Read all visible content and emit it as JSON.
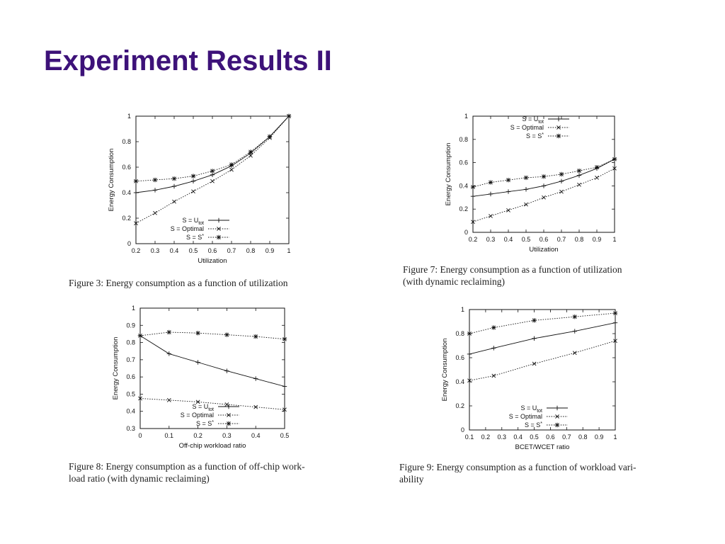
{
  "slide": {
    "title": "Experiment Results II"
  },
  "figures": [
    {
      "caption_lines": [
        "Figure 3: Energy consumption as a function of utilization"
      ]
    },
    {
      "caption_lines": [
        "Figure 7:  Energy consumption as a function of utilization",
        "(with dynamic reclaiming)"
      ]
    },
    {
      "caption_lines": [
        "Figure 8: Energy consumption as a function of off-chip work-",
        "load ratio (with dynamic reclaiming)"
      ]
    },
    {
      "caption_lines": [
        "Figure 9: Energy consumption as a function of workload vari-",
        "ability"
      ]
    }
  ],
  "chart_data": [
    {
      "type": "line",
      "xlabel": "Utilization",
      "ylabel": "Energy Consumption",
      "xlim": [
        0.2,
        1
      ],
      "ylim": [
        0,
        1
      ],
      "xticks": [
        "0.2",
        "0.3",
        "0.4",
        "0.5",
        "0.6",
        "0.7",
        "0.8",
        "0.9",
        "1"
      ],
      "yticks": [
        "0",
        "0.2",
        "0.4",
        "0.6",
        "0.8",
        "1"
      ],
      "legend_position": "bottom-right",
      "x": [
        0.2,
        0.3,
        0.4,
        0.5,
        0.6,
        0.7,
        0.8,
        0.9,
        1
      ],
      "series": [
        {
          "name": "S = U",
          "name_sub": "tot",
          "marker": "plus",
          "dash": "solid",
          "values": [
            0.4,
            0.42,
            0.45,
            0.49,
            0.54,
            0.61,
            0.71,
            0.84,
            1.0
          ]
        },
        {
          "name": "S = Optimal",
          "marker": "x",
          "dash": "dotted",
          "values": [
            0.16,
            0.24,
            0.33,
            0.41,
            0.49,
            0.58,
            0.69,
            0.83,
            1.0
          ]
        },
        {
          "name": "S = S",
          "name_sup": "*",
          "marker": "star",
          "dash": "dotted",
          "values": [
            0.49,
            0.5,
            0.51,
            0.53,
            0.57,
            0.62,
            0.72,
            0.84,
            1.0
          ]
        }
      ]
    },
    {
      "type": "line",
      "xlabel": "Utilization",
      "ylabel": "Energy Consumption",
      "xlim": [
        0.2,
        1
      ],
      "ylim": [
        0,
        1
      ],
      "xticks": [
        "0.2",
        "0.3",
        "0.4",
        "0.5",
        "0.6",
        "0.7",
        "0.8",
        "0.9",
        "1"
      ],
      "yticks": [
        "0",
        "0.2",
        "0.4",
        "0.6",
        "0.8",
        "1"
      ],
      "legend_position": "top-right",
      "x": [
        0.2,
        0.3,
        0.4,
        0.5,
        0.6,
        0.7,
        0.8,
        0.9,
        1
      ],
      "series": [
        {
          "name": "S = U",
          "name_sub": "tot",
          "marker": "plus",
          "dash": "solid",
          "values": [
            0.31,
            0.33,
            0.35,
            0.37,
            0.4,
            0.44,
            0.49,
            0.55,
            0.63
          ]
        },
        {
          "name": "S = Optimal",
          "marker": "x",
          "dash": "dotted",
          "values": [
            0.09,
            0.14,
            0.19,
            0.24,
            0.3,
            0.35,
            0.41,
            0.47,
            0.55
          ]
        },
        {
          "name": "S = S",
          "name_sup": "*",
          "marker": "star",
          "dash": "dotted",
          "values": [
            0.39,
            0.43,
            0.45,
            0.47,
            0.48,
            0.5,
            0.53,
            0.56,
            0.63
          ]
        }
      ]
    },
    {
      "type": "line",
      "xlabel": "Off-chip workload ratio",
      "ylabel": "Energy Consumption",
      "xlim": [
        0,
        0.5
      ],
      "ylim": [
        0.3,
        1
      ],
      "xticks": [
        "0",
        "0.1",
        "0.2",
        "0.3",
        "0.4",
        "0.5"
      ],
      "yticks": [
        "0.3",
        "0.4",
        "0.5",
        "0.6",
        "0.7",
        "0.8",
        "0.9",
        "1"
      ],
      "legend_position": "bottom-center",
      "x": [
        0,
        0.1,
        0.2,
        0.3,
        0.4,
        0.5
      ],
      "series": [
        {
          "name": "S = U",
          "name_sub": "tot",
          "marker": "plus",
          "dash": "solid",
          "values": [
            0.84,
            0.735,
            0.685,
            0.635,
            0.59,
            0.545
          ]
        },
        {
          "name": "S = Optimal",
          "marker": "x",
          "dash": "dotted",
          "values": [
            0.475,
            0.465,
            0.455,
            0.44,
            0.425,
            0.41
          ]
        },
        {
          "name": "S = S",
          "name_sup": "*",
          "marker": "star",
          "dash": "dotted",
          "values": [
            0.84,
            0.86,
            0.855,
            0.845,
            0.835,
            0.82
          ]
        }
      ]
    },
    {
      "type": "line",
      "xlabel": "BCET/WCET ratio",
      "ylabel": "Energy Consumption",
      "xlim": [
        0.1,
        1
      ],
      "ylim": [
        0,
        1
      ],
      "xticks": [
        "0.1",
        "0.2",
        "0.3",
        "0.4",
        "0.5",
        "0.6",
        "0.7",
        "0.8",
        "0.9",
        "1"
      ],
      "yticks": [
        "0",
        "0.2",
        "0.4",
        "0.6",
        "0.8",
        "1"
      ],
      "legend_position": "bottom-right",
      "x": [
        0.1,
        0.25,
        0.5,
        0.75,
        1
      ],
      "series": [
        {
          "name": "S = U",
          "name_sub": "tot",
          "marker": "plus",
          "dash": "solid",
          "values": [
            0.63,
            0.68,
            0.76,
            0.82,
            0.89
          ]
        },
        {
          "name": "S = Optimal",
          "marker": "x",
          "dash": "dotted",
          "values": [
            0.41,
            0.45,
            0.55,
            0.64,
            0.74
          ]
        },
        {
          "name": "S = S",
          "name_sup": "*",
          "marker": "star",
          "dash": "dotted",
          "values": [
            0.8,
            0.85,
            0.91,
            0.94,
            0.97
          ]
        }
      ]
    }
  ]
}
